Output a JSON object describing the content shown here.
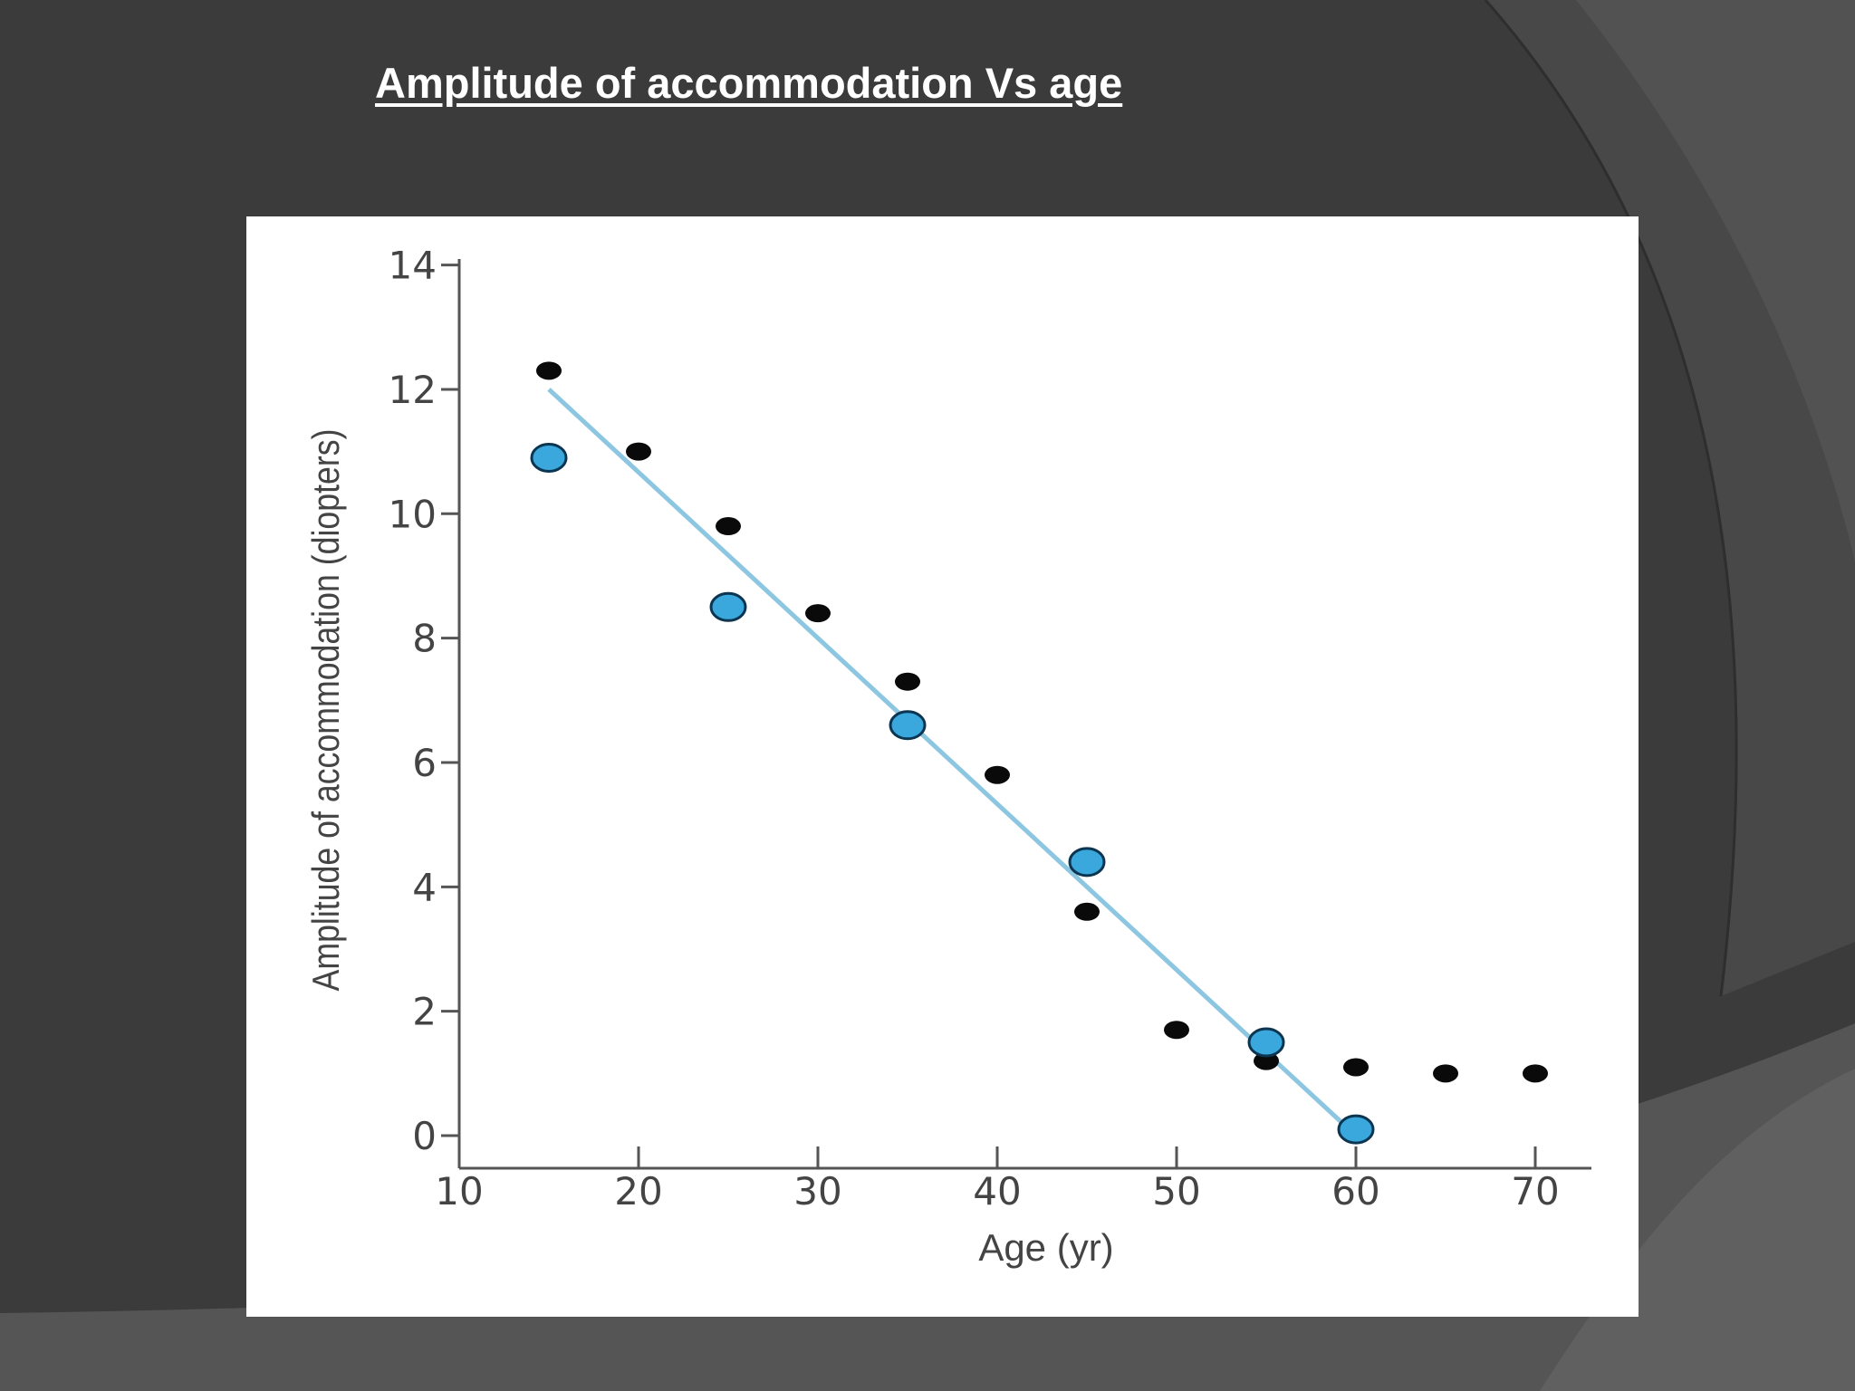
{
  "slide": {
    "title": "Amplitude of accommodation Vs age"
  },
  "colors": {
    "background": "#3b3b3b",
    "panel": "#ffffff",
    "black_points": "#0a0a0a",
    "blue_points": "#3aa8dc",
    "fit_line": "#8cc6e0"
  },
  "chart_data": {
    "type": "scatter",
    "title": "",
    "xlabel": "Age (yr)",
    "ylabel": "Amplitude of accommodation (diopters)",
    "xlim": [
      10,
      72
    ],
    "ylim": [
      0,
      14
    ],
    "xticks": [
      "10",
      "20",
      "30",
      "40",
      "50",
      "60",
      "70"
    ],
    "yticks": [
      "0",
      "2",
      "4",
      "6",
      "8",
      "10",
      "12",
      "14"
    ],
    "grid": false,
    "legend": "none",
    "series": [
      {
        "marker": "black-dot",
        "x": [
          15,
          20,
          25,
          30,
          35,
          40,
          45,
          50,
          55,
          60,
          65,
          70
        ],
        "y": [
          12.3,
          11.0,
          9.8,
          8.4,
          7.3,
          5.8,
          3.6,
          1.7,
          1.2,
          1.1,
          1.0,
          1.0
        ]
      },
      {
        "marker": "blue-circle",
        "x": [
          15,
          25,
          35,
          45,
          55,
          60
        ],
        "y": [
          10.9,
          8.5,
          6.6,
          4.4,
          1.5,
          0.1
        ]
      }
    ],
    "fit_line": {
      "x": [
        15,
        60
      ],
      "y": [
        12.0,
        0.0
      ]
    }
  }
}
